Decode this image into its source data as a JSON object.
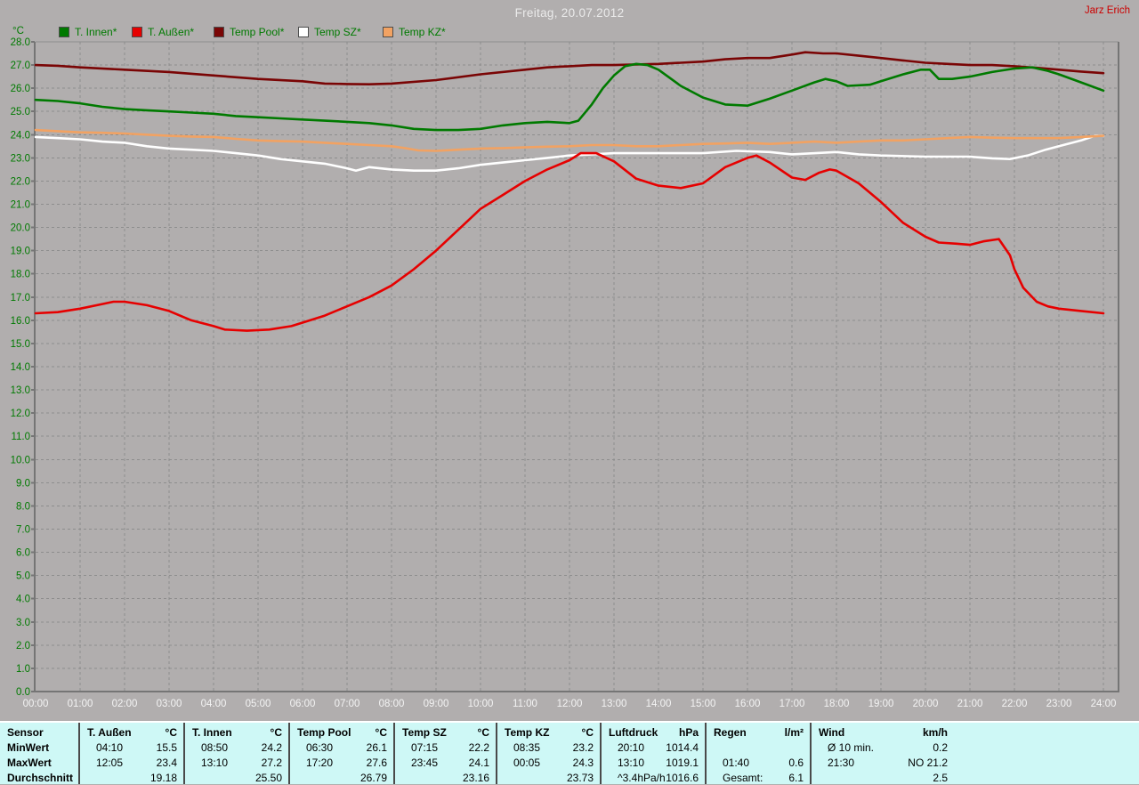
{
  "header": {
    "title": "Freitag, 20.07.2012",
    "user": "Jarz Erich"
  },
  "colors": {
    "background": "#b1aeae",
    "grid": "#8d8d8d",
    "axis": "#757575",
    "y_tick_text": "#007a00",
    "x_tick_text": "#f4f4f4",
    "title_text": "#ebebeb",
    "user_text": "#cc0000",
    "table_background": "#cef8f6",
    "series_innen": "#007a00",
    "series_aussen": "#e60000",
    "series_pool": "#7a0505",
    "series_sz": "#ffffff",
    "series_kz": "#f2a262"
  },
  "chart_data": {
    "type": "line",
    "title": "Freitag, 20.07.2012",
    "xlabel": "",
    "ylabel": "°C",
    "xlim": [
      0,
      24
    ],
    "ylim": [
      0,
      28
    ],
    "grid": true,
    "legend_position": "top-left",
    "x_ticks": [
      "00:00",
      "01:00",
      "02:00",
      "03:00",
      "04:00",
      "05:00",
      "06:00",
      "07:00",
      "08:00",
      "09:00",
      "10:00",
      "11:00",
      "12:00",
      "13:00",
      "14:00",
      "15:00",
      "16:00",
      "17:00",
      "18:00",
      "19:00",
      "20:00",
      "21:00",
      "22:00",
      "23:00",
      "24:00"
    ],
    "y_ticks": [
      "0.0",
      "1.0",
      "2.0",
      "3.0",
      "4.0",
      "5.0",
      "6.0",
      "7.0",
      "8.0",
      "9.0",
      "10.0",
      "11.0",
      "12.0",
      "13.0",
      "14.0",
      "15.0",
      "16.0",
      "17.0",
      "18.0",
      "19.0",
      "20.0",
      "21.0",
      "22.0",
      "23.0",
      "24.0",
      "25.0",
      "26.0",
      "27.0",
      "28.0"
    ],
    "series": [
      {
        "name": "T. Innen*",
        "color": "#007a00",
        "points": [
          [
            0,
            25.5
          ],
          [
            0.5,
            25.45
          ],
          [
            1,
            25.35
          ],
          [
            1.5,
            25.2
          ],
          [
            2,
            25.1
          ],
          [
            2.5,
            25.05
          ],
          [
            3,
            25.0
          ],
          [
            3.5,
            24.95
          ],
          [
            4,
            24.9
          ],
          [
            4.5,
            24.8
          ],
          [
            5,
            24.75
          ],
          [
            5.5,
            24.7
          ],
          [
            6,
            24.65
          ],
          [
            6.5,
            24.6
          ],
          [
            7,
            24.55
          ],
          [
            7.5,
            24.5
          ],
          [
            8,
            24.4
          ],
          [
            8.5,
            24.25
          ],
          [
            9,
            24.2
          ],
          [
            9.5,
            24.2
          ],
          [
            10,
            24.25
          ],
          [
            10.5,
            24.4
          ],
          [
            11,
            24.5
          ],
          [
            11.5,
            24.55
          ],
          [
            12,
            24.5
          ],
          [
            12.2,
            24.6
          ],
          [
            12.5,
            25.3
          ],
          [
            12.75,
            26.0
          ],
          [
            13,
            26.55
          ],
          [
            13.25,
            26.95
          ],
          [
            13.5,
            27.05
          ],
          [
            13.75,
            27.0
          ],
          [
            14,
            26.8
          ],
          [
            14.5,
            26.1
          ],
          [
            15,
            25.6
          ],
          [
            15.5,
            25.3
          ],
          [
            16,
            25.25
          ],
          [
            16.5,
            25.55
          ],
          [
            17,
            25.9
          ],
          [
            17.5,
            26.25
          ],
          [
            17.75,
            26.4
          ],
          [
            18,
            26.3
          ],
          [
            18.25,
            26.1
          ],
          [
            18.75,
            26.15
          ],
          [
            19,
            26.3
          ],
          [
            19.5,
            26.6
          ],
          [
            19.9,
            26.8
          ],
          [
            20.1,
            26.8
          ],
          [
            20.3,
            26.4
          ],
          [
            20.6,
            26.4
          ],
          [
            21,
            26.5
          ],
          [
            21.5,
            26.7
          ],
          [
            22,
            26.85
          ],
          [
            22.4,
            26.9
          ],
          [
            22.75,
            26.75
          ],
          [
            23,
            26.6
          ],
          [
            23.5,
            26.25
          ],
          [
            24,
            25.9
          ]
        ]
      },
      {
        "name": "T. Außen*",
        "color": "#e60000",
        "points": [
          [
            0,
            16.3
          ],
          [
            0.5,
            16.35
          ],
          [
            1,
            16.5
          ],
          [
            1.5,
            16.7
          ],
          [
            1.75,
            16.8
          ],
          [
            2,
            16.8
          ],
          [
            2.5,
            16.65
          ],
          [
            3,
            16.4
          ],
          [
            3.5,
            16.0
          ],
          [
            4,
            15.75
          ],
          [
            4.25,
            15.6
          ],
          [
            4.75,
            15.55
          ],
          [
            5.25,
            15.6
          ],
          [
            5.75,
            15.75
          ],
          [
            6,
            15.9
          ],
          [
            6.5,
            16.2
          ],
          [
            7,
            16.6
          ],
          [
            7.5,
            17.0
          ],
          [
            8,
            17.5
          ],
          [
            8.5,
            18.2
          ],
          [
            9,
            19.0
          ],
          [
            9.5,
            19.9
          ],
          [
            10,
            20.8
          ],
          [
            10.5,
            21.4
          ],
          [
            11,
            22.0
          ],
          [
            11.5,
            22.5
          ],
          [
            12,
            22.9
          ],
          [
            12.25,
            23.2
          ],
          [
            12.6,
            23.2
          ],
          [
            13,
            22.85
          ],
          [
            13.5,
            22.1
          ],
          [
            14,
            21.8
          ],
          [
            14.5,
            21.7
          ],
          [
            15,
            21.9
          ],
          [
            15.5,
            22.6
          ],
          [
            16,
            23.0
          ],
          [
            16.2,
            23.1
          ],
          [
            16.5,
            22.8
          ],
          [
            17,
            22.15
          ],
          [
            17.3,
            22.05
          ],
          [
            17.6,
            22.35
          ],
          [
            17.85,
            22.5
          ],
          [
            18,
            22.45
          ],
          [
            18.5,
            21.9
          ],
          [
            19,
            21.1
          ],
          [
            19.5,
            20.2
          ],
          [
            20,
            19.6
          ],
          [
            20.3,
            19.35
          ],
          [
            20.7,
            19.3
          ],
          [
            21,
            19.25
          ],
          [
            21.3,
            19.4
          ],
          [
            21.65,
            19.5
          ],
          [
            21.9,
            18.8
          ],
          [
            22,
            18.2
          ],
          [
            22.2,
            17.4
          ],
          [
            22.5,
            16.8
          ],
          [
            22.75,
            16.6
          ],
          [
            23,
            16.5
          ],
          [
            23.5,
            16.4
          ],
          [
            24,
            16.3
          ]
        ]
      },
      {
        "name": "Temp Pool*",
        "color": "#7a0505",
        "points": [
          [
            0,
            27.0
          ],
          [
            0.5,
            26.97
          ],
          [
            1,
            26.9
          ],
          [
            2,
            26.8
          ],
          [
            3,
            26.7
          ],
          [
            4,
            26.55
          ],
          [
            5,
            26.4
          ],
          [
            6,
            26.3
          ],
          [
            6.5,
            26.2
          ],
          [
            7,
            26.18
          ],
          [
            7.5,
            26.17
          ],
          [
            8,
            26.2
          ],
          [
            9,
            26.35
          ],
          [
            10,
            26.6
          ],
          [
            11,
            26.8
          ],
          [
            11.5,
            26.9
          ],
          [
            12,
            26.95
          ],
          [
            12.5,
            27.0
          ],
          [
            13,
            27.0
          ],
          [
            14,
            27.05
          ],
          [
            14.5,
            27.1
          ],
          [
            15,
            27.15
          ],
          [
            15.5,
            27.25
          ],
          [
            16,
            27.3
          ],
          [
            16.5,
            27.3
          ],
          [
            17,
            27.45
          ],
          [
            17.3,
            27.55
          ],
          [
            17.7,
            27.5
          ],
          [
            18,
            27.5
          ],
          [
            18.5,
            27.4
          ],
          [
            19,
            27.3
          ],
          [
            19.5,
            27.2
          ],
          [
            20,
            27.1
          ],
          [
            20.5,
            27.05
          ],
          [
            21,
            27.0
          ],
          [
            21.5,
            27.0
          ],
          [
            22,
            26.95
          ],
          [
            22.5,
            26.88
          ],
          [
            23,
            26.8
          ],
          [
            23.5,
            26.72
          ],
          [
            24,
            26.65
          ]
        ]
      },
      {
        "name": "Temp SZ*",
        "color": "#ffffff",
        "points": [
          [
            0,
            23.9
          ],
          [
            0.5,
            23.85
          ],
          [
            1,
            23.8
          ],
          [
            1.5,
            23.7
          ],
          [
            2,
            23.65
          ],
          [
            2.5,
            23.5
          ],
          [
            3,
            23.4
          ],
          [
            3.5,
            23.35
          ],
          [
            4,
            23.3
          ],
          [
            4.5,
            23.2
          ],
          [
            5,
            23.1
          ],
          [
            5.5,
            22.95
          ],
          [
            6,
            22.85
          ],
          [
            6.5,
            22.75
          ],
          [
            7,
            22.55
          ],
          [
            7.2,
            22.45
          ],
          [
            7.5,
            22.6
          ],
          [
            8,
            22.5
          ],
          [
            8.5,
            22.45
          ],
          [
            9,
            22.45
          ],
          [
            9.5,
            22.55
          ],
          [
            10,
            22.7
          ],
          [
            10.5,
            22.8
          ],
          [
            11,
            22.9
          ],
          [
            11.5,
            23.0
          ],
          [
            12,
            23.1
          ],
          [
            12.5,
            23.15
          ],
          [
            13,
            23.2
          ],
          [
            14,
            23.2
          ],
          [
            15,
            23.2
          ],
          [
            15.75,
            23.3
          ],
          [
            16.5,
            23.25
          ],
          [
            17,
            23.15
          ],
          [
            18,
            23.25
          ],
          [
            18.5,
            23.15
          ],
          [
            19,
            23.1
          ],
          [
            20,
            23.05
          ],
          [
            21,
            23.05
          ],
          [
            21.5,
            22.98
          ],
          [
            21.9,
            22.95
          ],
          [
            22.3,
            23.1
          ],
          [
            22.7,
            23.35
          ],
          [
            23,
            23.5
          ],
          [
            23.5,
            23.75
          ],
          [
            23.8,
            23.95
          ],
          [
            24,
            23.95
          ]
        ]
      },
      {
        "name": "Temp KZ*",
        "color": "#f2a262",
        "points": [
          [
            0,
            24.2
          ],
          [
            0.5,
            24.15
          ],
          [
            1,
            24.1
          ],
          [
            1.5,
            24.08
          ],
          [
            2,
            24.05
          ],
          [
            2.5,
            24.0
          ],
          [
            3,
            23.95
          ],
          [
            3.5,
            23.92
          ],
          [
            4,
            23.9
          ],
          [
            4.5,
            23.82
          ],
          [
            5,
            23.75
          ],
          [
            5.5,
            23.72
          ],
          [
            6,
            23.7
          ],
          [
            6.5,
            23.65
          ],
          [
            7,
            23.6
          ],
          [
            7.5,
            23.55
          ],
          [
            8,
            23.5
          ],
          [
            8.3,
            23.42
          ],
          [
            8.6,
            23.32
          ],
          [
            9,
            23.3
          ],
          [
            9.5,
            23.35
          ],
          [
            10,
            23.4
          ],
          [
            10.5,
            23.42
          ],
          [
            11,
            23.45
          ],
          [
            11.5,
            23.48
          ],
          [
            12,
            23.5
          ],
          [
            12.5,
            23.55
          ],
          [
            13,
            23.55
          ],
          [
            13.5,
            23.5
          ],
          [
            14,
            23.5
          ],
          [
            14.5,
            23.55
          ],
          [
            15,
            23.6
          ],
          [
            15.5,
            23.62
          ],
          [
            16,
            23.65
          ],
          [
            16.5,
            23.6
          ],
          [
            17,
            23.65
          ],
          [
            17.5,
            23.7
          ],
          [
            18,
            23.65
          ],
          [
            18.5,
            23.7
          ],
          [
            19,
            23.75
          ],
          [
            19.5,
            23.75
          ],
          [
            20,
            23.8
          ],
          [
            20.5,
            23.85
          ],
          [
            21,
            23.9
          ],
          [
            21.5,
            23.87
          ],
          [
            22,
            23.85
          ],
          [
            22.5,
            23.85
          ],
          [
            23,
            23.85
          ],
          [
            23.5,
            23.9
          ],
          [
            24,
            23.95
          ]
        ]
      }
    ]
  },
  "summary_table": {
    "row_labels": [
      "Sensor",
      "MinWert",
      "MaxWert",
      "Durchschnitt"
    ],
    "groups": [
      {
        "name": "T. Außen",
        "unit": "°C",
        "min": [
          "04:10",
          "15.5"
        ],
        "max": [
          "12:05",
          "23.4"
        ],
        "avg": [
          "",
          "19.18"
        ]
      },
      {
        "name": "T. Innen",
        "unit": "°C",
        "min": [
          "08:50",
          "24.2"
        ],
        "max": [
          "13:10",
          "27.2"
        ],
        "avg": [
          "",
          "25.50"
        ]
      },
      {
        "name": "Temp Pool",
        "unit": "°C",
        "min": [
          "06:30",
          "26.1"
        ],
        "max": [
          "17:20",
          "27.6"
        ],
        "avg": [
          "",
          "26.79"
        ]
      },
      {
        "name": "Temp SZ",
        "unit": "°C",
        "min": [
          "07:15",
          "22.2"
        ],
        "max": [
          "23:45",
          "24.1"
        ],
        "avg": [
          "",
          "23.16"
        ]
      },
      {
        "name": "Temp KZ",
        "unit": "°C",
        "min": [
          "08:35",
          "23.2"
        ],
        "max": [
          "00:05",
          "24.3"
        ],
        "avg": [
          "",
          "23.73"
        ]
      },
      {
        "name": "Luftdruck",
        "unit": "hPa",
        "min": [
          "20:10",
          "1014.4"
        ],
        "max": [
          "13:10",
          "1019.1"
        ],
        "avg": [
          "^3.4hPa/h",
          "1016.6"
        ]
      },
      {
        "name": "Regen",
        "unit": "l/m²",
        "min": [
          "",
          ""
        ],
        "max": [
          "01:40",
          "0.6"
        ],
        "avg": [
          "Gesamt:",
          "6.1"
        ]
      },
      {
        "name": "Wind",
        "unit": "km/h",
        "min": [
          "Ø 10 min.",
          "0.2"
        ],
        "max": [
          "21:30",
          "NO 21.2"
        ],
        "avg": [
          "",
          "2.5"
        ]
      }
    ]
  }
}
